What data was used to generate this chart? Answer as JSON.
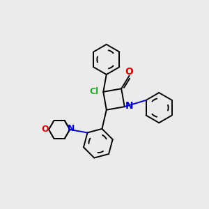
{
  "background_color": "#ebebeb",
  "atom_colors": {
    "C": "#000000",
    "N": "#0000cc",
    "O": "#dd0000",
    "Cl": "#22aa22"
  },
  "figsize": [
    3.0,
    3.0
  ],
  "dpi": 100,
  "lw": 1.4
}
